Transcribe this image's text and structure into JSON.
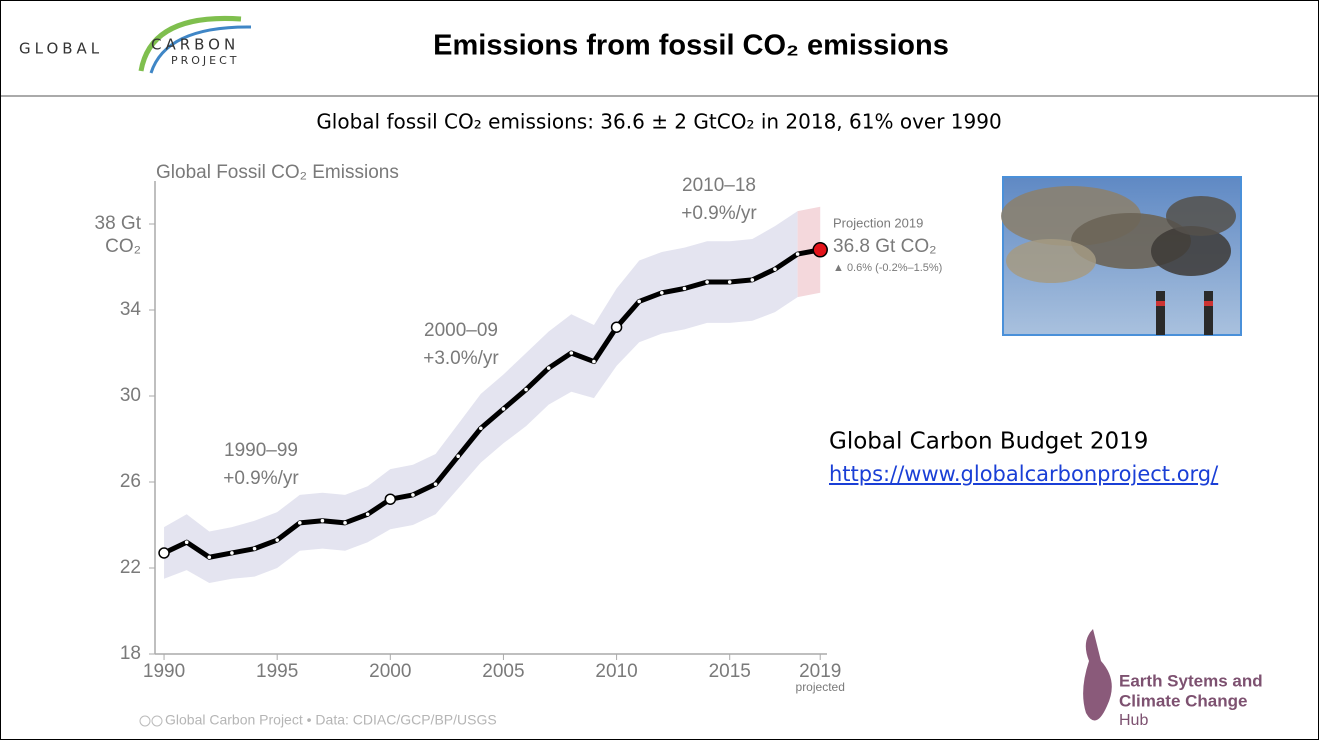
{
  "header": {
    "logo_left": "GLOBAL",
    "logo_right_top": "CARBON",
    "logo_right_bottom": "PROJECT",
    "title": "Emissions from fossil CO₂  emissions"
  },
  "subtitle": "Global fossil CO₂ emissions: 36.6 ± 2 GtCO₂ in 2018, 61% over 1990",
  "chart_data": {
    "type": "line",
    "title": "Global Fossil CO₂ Emissions",
    "x": [
      1990,
      1991,
      1992,
      1993,
      1994,
      1995,
      1996,
      1997,
      1998,
      1999,
      2000,
      2001,
      2002,
      2003,
      2004,
      2005,
      2006,
      2007,
      2008,
      2009,
      2010,
      2011,
      2012,
      2013,
      2014,
      2015,
      2016,
      2017,
      2018,
      2019
    ],
    "series": [
      {
        "name": "Global Fossil CO₂ Emissions",
        "color": "#000000",
        "values": [
          22.7,
          23.2,
          22.5,
          22.7,
          22.9,
          23.3,
          24.1,
          24.2,
          24.1,
          24.5,
          25.2,
          25.4,
          25.9,
          27.2,
          28.5,
          29.4,
          30.3,
          31.3,
          32.0,
          31.6,
          33.2,
          34.4,
          34.8,
          35.0,
          35.3,
          35.3,
          35.4,
          35.9,
          36.6,
          36.8
        ],
        "errors": [
          1.2,
          1.3,
          1.2,
          1.2,
          1.3,
          1.3,
          1.3,
          1.3,
          1.3,
          1.3,
          1.4,
          1.4,
          1.4,
          1.5,
          1.6,
          1.6,
          1.7,
          1.7,
          1.8,
          1.7,
          1.8,
          1.9,
          1.9,
          1.9,
          1.9,
          1.9,
          1.9,
          2.0,
          2.0,
          2.0
        ]
      }
    ],
    "band_color": "#e4e4f0",
    "projection_color": "#f4d8dc",
    "highlight_color": "#e3141b",
    "xlim": [
      1989.6,
      2019.3
    ],
    "xticks": [
      1990,
      1995,
      2000,
      2005,
      2010,
      2015,
      2019
    ],
    "x_tick_note": "projected",
    "ylim": [
      18,
      40
    ],
    "yticks": [
      18,
      22,
      26,
      30,
      34,
      {
        "value": 38,
        "label": "38 Gt CO₂"
      }
    ],
    "grid": false,
    "annotations": [
      {
        "lines": [
          "1990–99",
          "+0.9%/yr"
        ]
      },
      {
        "lines": [
          "2000–09",
          "+3.0%/yr"
        ]
      },
      {
        "lines": [
          "2010–18",
          "+0.9%/yr"
        ]
      }
    ],
    "projection": {
      "heading": "Projection 2019",
      "value": "36.8 Gt CO₂",
      "change": "▲ 0.6% (-0.2%–1.5%)"
    },
    "source": "Global Carbon Project  •  Data: CDIAC/GCP/BP/USGS"
  },
  "side": {
    "heading": "Global Carbon Budget 2019",
    "link": "https://www.globalcarbonproject.org/"
  },
  "hub": {
    "line1": "Earth Sytems and",
    "line2": "Climate Change",
    "line3": "Hub"
  }
}
